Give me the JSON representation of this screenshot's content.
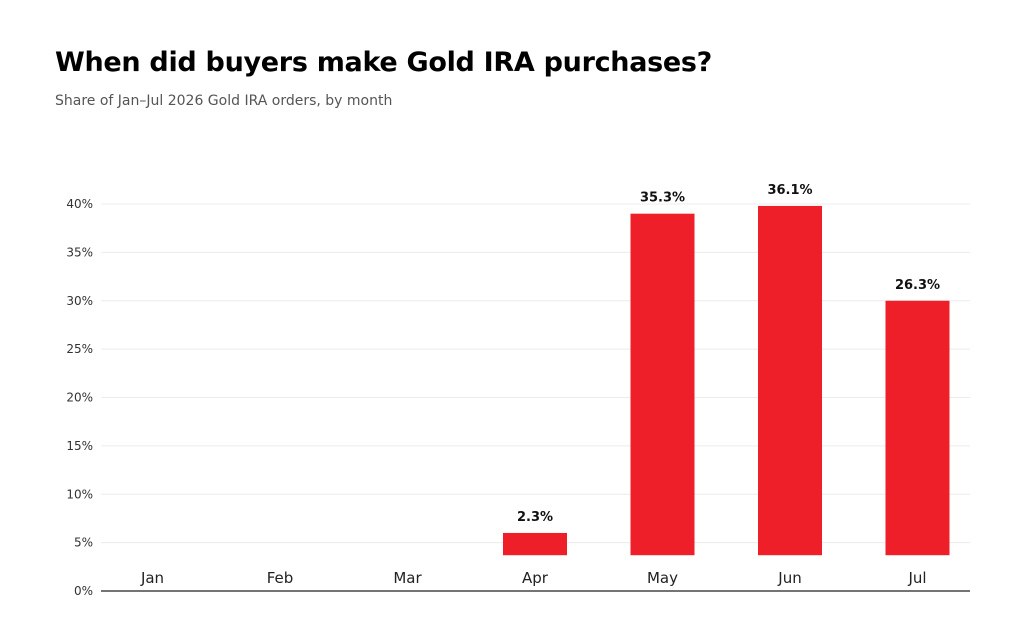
{
  "title": "When did buyers make Gold IRA purchases?",
  "subtitle": "Share of Jan–Jul 2026 Gold IRA orders, by month",
  "colors": {
    "bar": "#ee1f28",
    "grid": "#ececec",
    "axis": "#222222"
  },
  "chart_data": {
    "type": "bar",
    "categories": [
      "Jan",
      "Feb",
      "Mar",
      "Apr",
      "May",
      "Jun",
      "Jul"
    ],
    "values": [
      null,
      null,
      null,
      2.3,
      35.3,
      36.1,
      26.3
    ],
    "data_labels": [
      "",
      "",
      "",
      "2.3%",
      "35.3%",
      "36.1%",
      "26.3%"
    ],
    "bar_tops_on_axis": [
      null,
      null,
      null,
      6,
      39,
      39.8,
      30
    ],
    "bar_bottom_on_axis": 3.7,
    "ylim": [
      0,
      40
    ],
    "yticks": [
      0,
      5,
      10,
      15,
      20,
      25,
      30,
      35,
      40
    ],
    "ytick_labels": [
      "0%",
      "5%",
      "10%",
      "15%",
      "20%",
      "25%",
      "30%",
      "35%",
      "40%"
    ],
    "grid": true,
    "legend": false
  }
}
